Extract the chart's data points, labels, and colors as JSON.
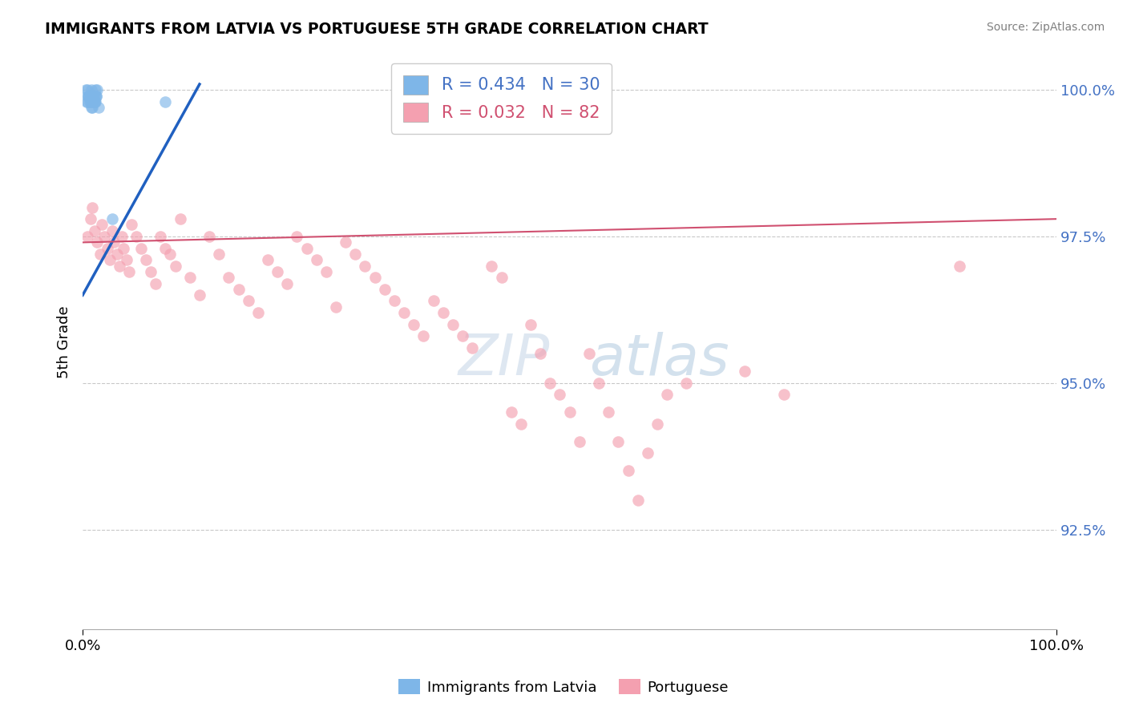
{
  "title": "IMMIGRANTS FROM LATVIA VS PORTUGUESE 5TH GRADE CORRELATION CHART",
  "source": "Source: ZipAtlas.com",
  "ylabel": "5th Grade",
  "yticks": [
    0.925,
    0.95,
    0.975,
    1.0
  ],
  "ytick_labels": [
    "92.5%",
    "95.0%",
    "97.5%",
    "100.0%"
  ],
  "xlim": [
    0.0,
    1.0
  ],
  "ylim": [
    0.908,
    1.006
  ],
  "legend_label_blue": "Immigrants from Latvia",
  "legend_label_pink": "Portuguese",
  "R_blue": 0.434,
  "N_blue": 30,
  "R_pink": 0.032,
  "N_pink": 82,
  "color_blue": "#7EB6E8",
  "color_pink": "#F4A0B0",
  "line_color_blue": "#2060C0",
  "line_color_pink": "#D05070",
  "blue_dots_x": [
    0.003,
    0.005,
    0.007,
    0.008,
    0.009,
    0.01,
    0.011,
    0.012,
    0.013,
    0.014,
    0.005,
    0.006,
    0.008,
    0.01,
    0.012,
    0.015,
    0.007,
    0.009,
    0.011,
    0.013,
    0.006,
    0.008,
    0.01,
    0.012,
    0.014,
    0.016,
    0.004,
    0.006,
    0.085,
    0.03
  ],
  "blue_dots_y": [
    1.0,
    1.0,
    0.999,
    0.999,
    1.0,
    0.999,
    0.999,
    0.998,
    1.0,
    0.999,
    0.998,
    0.999,
    0.999,
    0.998,
    0.999,
    1.0,
    0.998,
    0.997,
    0.999,
    0.998,
    0.999,
    0.998,
    0.997,
    0.998,
    0.999,
    0.997,
    0.998,
    0.999,
    0.998,
    0.978
  ],
  "pink_dots_x": [
    0.005,
    0.008,
    0.01,
    0.012,
    0.015,
    0.018,
    0.02,
    0.022,
    0.025,
    0.028,
    0.03,
    0.032,
    0.035,
    0.038,
    0.04,
    0.042,
    0.045,
    0.048,
    0.05,
    0.055,
    0.06,
    0.065,
    0.07,
    0.075,
    0.08,
    0.085,
    0.09,
    0.095,
    0.1,
    0.11,
    0.12,
    0.13,
    0.14,
    0.15,
    0.16,
    0.17,
    0.18,
    0.19,
    0.2,
    0.21,
    0.22,
    0.23,
    0.24,
    0.25,
    0.26,
    0.27,
    0.28,
    0.29,
    0.3,
    0.31,
    0.32,
    0.33,
    0.34,
    0.35,
    0.36,
    0.37,
    0.38,
    0.39,
    0.4,
    0.42,
    0.43,
    0.44,
    0.45,
    0.46,
    0.47,
    0.48,
    0.49,
    0.5,
    0.51,
    0.52,
    0.53,
    0.54,
    0.55,
    0.56,
    0.57,
    0.58,
    0.59,
    0.6,
    0.62,
    0.68,
    0.72,
    0.9
  ],
  "pink_dots_y": [
    0.975,
    0.978,
    0.98,
    0.976,
    0.974,
    0.972,
    0.977,
    0.975,
    0.973,
    0.971,
    0.976,
    0.974,
    0.972,
    0.97,
    0.975,
    0.973,
    0.971,
    0.969,
    0.977,
    0.975,
    0.973,
    0.971,
    0.969,
    0.967,
    0.975,
    0.973,
    0.972,
    0.97,
    0.978,
    0.968,
    0.965,
    0.975,
    0.972,
    0.968,
    0.966,
    0.964,
    0.962,
    0.971,
    0.969,
    0.967,
    0.975,
    0.973,
    0.971,
    0.969,
    0.963,
    0.974,
    0.972,
    0.97,
    0.968,
    0.966,
    0.964,
    0.962,
    0.96,
    0.958,
    0.964,
    0.962,
    0.96,
    0.958,
    0.956,
    0.97,
    0.968,
    0.945,
    0.943,
    0.96,
    0.955,
    0.95,
    0.948,
    0.945,
    0.94,
    0.955,
    0.95,
    0.945,
    0.94,
    0.935,
    0.93,
    0.938,
    0.943,
    0.948,
    0.95,
    0.952,
    0.948,
    0.97
  ]
}
